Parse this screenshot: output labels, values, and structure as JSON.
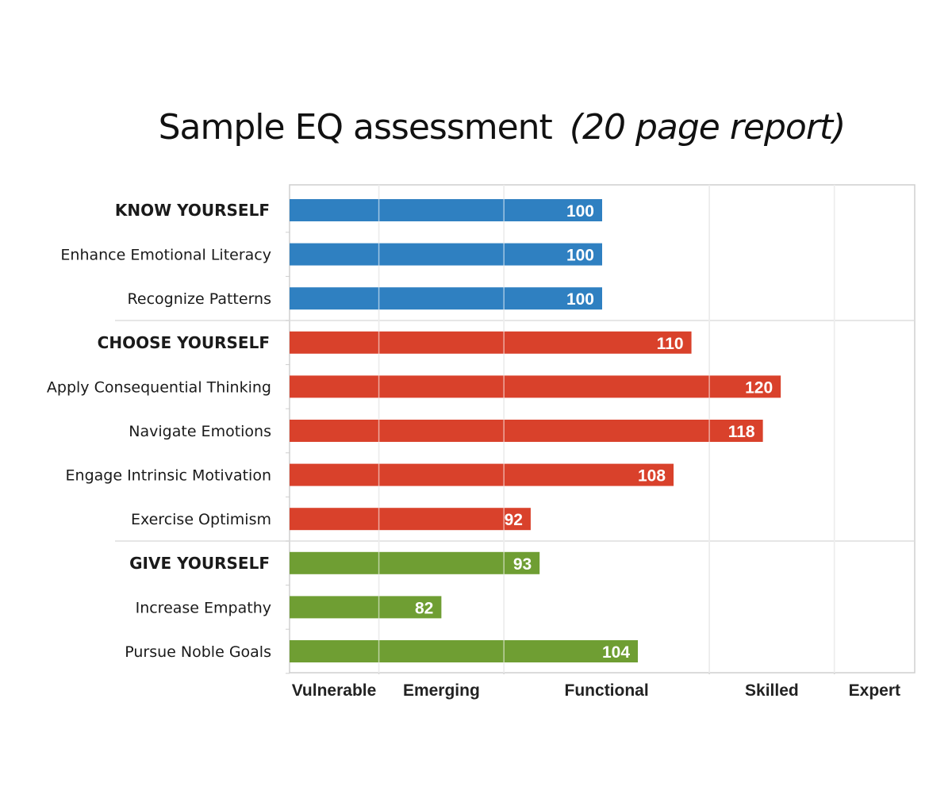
{
  "title": "Sample EQ assessment",
  "subtitle": "(20 page report)",
  "chart_data": {
    "type": "bar",
    "orientation": "horizontal",
    "title": "Sample EQ assessment (20 page report)",
    "xlim": [
      65,
      135
    ],
    "x_axis_categories": [
      "Vulnerable",
      "Emerging",
      "Functional",
      "Skilled",
      "Expert"
    ],
    "x_axis_category_boundaries": [
      75,
      89,
      112,
      126
    ],
    "grid": true,
    "colors": {
      "KNOW YOURSELF": "#2f80c1",
      "CHOOSE YOURSELF": "#d9412b",
      "GIVE YOURSELF": "#6f9e33"
    },
    "rows": [
      {
        "label": "KNOW YOURSELF",
        "value": 100,
        "group": "KNOW YOURSELF",
        "is_group": true
      },
      {
        "label": "Enhance Emotional Literacy",
        "value": 100,
        "group": "KNOW YOURSELF",
        "is_group": false
      },
      {
        "label": "Recognize Patterns",
        "value": 100,
        "group": "KNOW YOURSELF",
        "is_group": false
      },
      {
        "label": "CHOOSE YOURSELF",
        "value": 110,
        "group": "CHOOSE YOURSELF",
        "is_group": true
      },
      {
        "label": "Apply Consequential Thinking",
        "value": 120,
        "group": "CHOOSE YOURSELF",
        "is_group": false
      },
      {
        "label": "Navigate Emotions",
        "value": 118,
        "group": "CHOOSE YOURSELF",
        "is_group": false
      },
      {
        "label": "Engage Intrinsic Motivation",
        "value": 108,
        "group": "CHOOSE YOURSELF",
        "is_group": false
      },
      {
        "label": "Exercise Optimism",
        "value": 92,
        "group": "CHOOSE YOURSELF",
        "is_group": false
      },
      {
        "label": "GIVE YOURSELF",
        "value": 93,
        "group": "GIVE YOURSELF",
        "is_group": true
      },
      {
        "label": "Increase Empathy",
        "value": 82,
        "group": "GIVE YOURSELF",
        "is_group": false
      },
      {
        "label": "Pursue Noble Goals",
        "value": 104,
        "group": "GIVE YOURSELF",
        "is_group": false
      }
    ]
  }
}
